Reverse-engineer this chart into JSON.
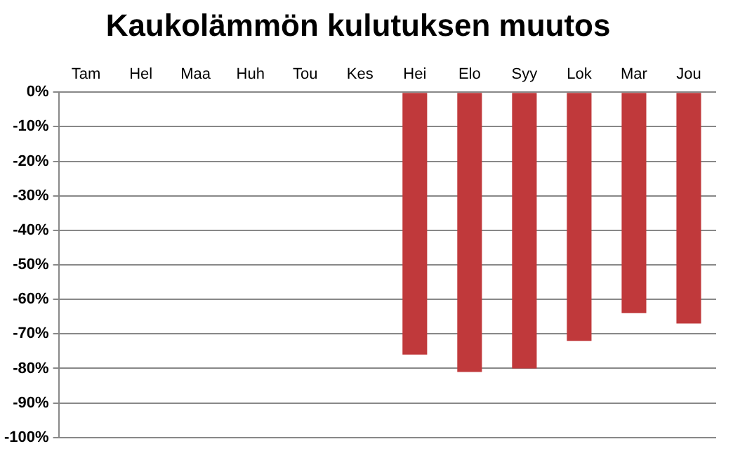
{
  "chart_data": {
    "type": "bar",
    "title": "Kaukolämmön kulutuksen muutos",
    "categories": [
      "Tam",
      "Hel",
      "Maa",
      "Huh",
      "Tou",
      "Kes",
      "Hei",
      "Elo",
      "Syy",
      "Lok",
      "Mar",
      "Jou"
    ],
    "values": [
      null,
      null,
      null,
      null,
      null,
      null,
      -76,
      -81,
      -80,
      -72,
      -64,
      -67
    ],
    "color": "#c0393b",
    "ylim": [
      -100,
      0
    ],
    "yticks": [
      {
        "value": 0,
        "label": "0%"
      },
      {
        "value": -10,
        "label": "-10%"
      },
      {
        "value": -20,
        "label": "-20%"
      },
      {
        "value": -30,
        "label": "-30%"
      },
      {
        "value": -40,
        "label": "-40%"
      },
      {
        "value": -50,
        "label": "-50%"
      },
      {
        "value": -60,
        "label": "-60%"
      },
      {
        "value": -70,
        "label": "-70%"
      },
      {
        "value": -80,
        "label": "-80%"
      },
      {
        "value": -90,
        "label": "-90%"
      },
      {
        "value": -100,
        "label": "-100%"
      }
    ],
    "grid": "y",
    "legend": false
  }
}
